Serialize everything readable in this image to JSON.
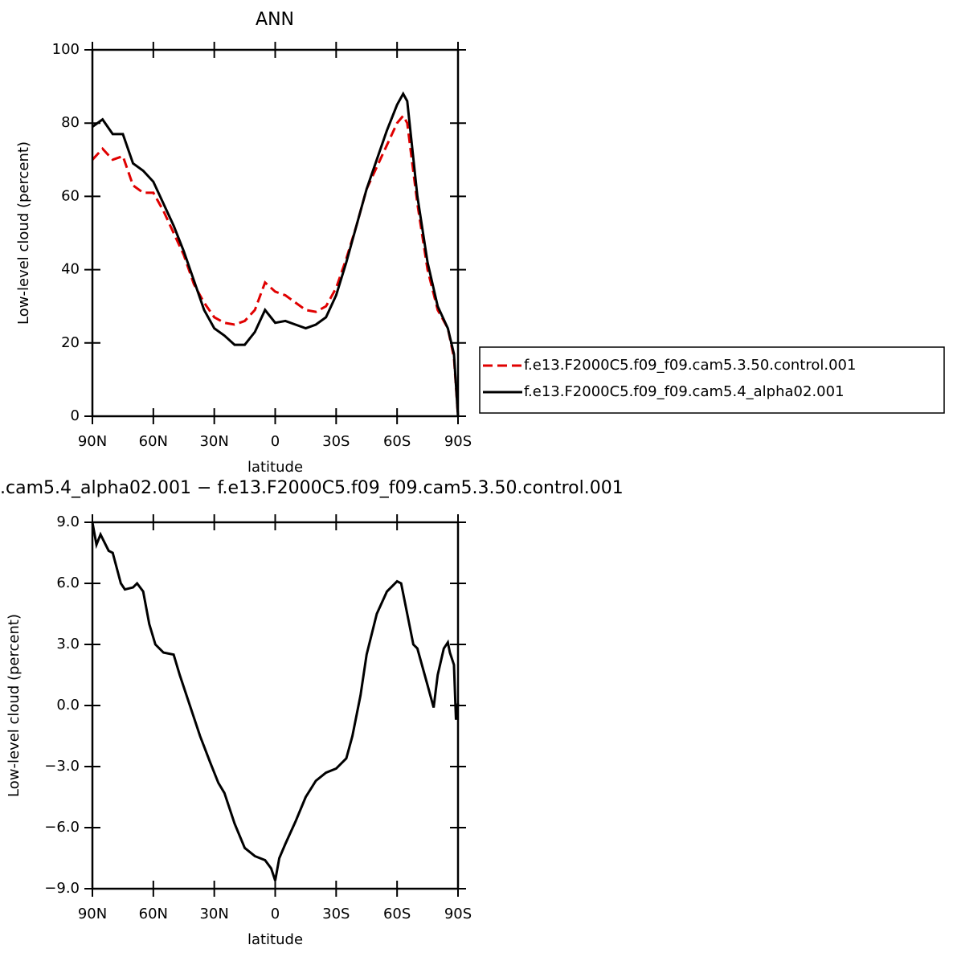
{
  "chart_data": [
    {
      "type": "line",
      "title": "ANN",
      "xlabel": "latitude",
      "ylabel": "Low-level cloud (percent)",
      "x": [
        90,
        85,
        80,
        75,
        70,
        65,
        60,
        55,
        50,
        45,
        40,
        35,
        30,
        25,
        20,
        15,
        10,
        5,
        0,
        -5,
        -10,
        -15,
        -20,
        -25,
        -30,
        -35,
        -40,
        -45,
        -50,
        -55,
        -60,
        -63,
        -65,
        -70,
        -75,
        -80,
        -85,
        -88,
        -90
      ],
      "series": [
        {
          "name": "f.e13.F2000C5.f09_f09.cam5.3.50.control.001",
          "color": "#e00000",
          "linestyle": "dashed",
          "values": [
            70,
            73,
            70,
            71,
            63,
            61,
            61,
            56,
            50,
            44,
            36,
            31,
            27,
            25.5,
            25,
            26,
            29,
            36.5,
            34,
            33,
            31,
            29,
            28.5,
            30,
            35,
            43,
            52,
            62,
            68,
            74,
            80,
            82,
            80,
            58,
            40,
            29,
            24,
            16,
            0
          ]
        },
        {
          "name": "f.e13.F2000C5.f09_f09.cam5.4_alpha02.001",
          "color": "#000000",
          "linestyle": "solid",
          "values": [
            79,
            81,
            77,
            77,
            69,
            67,
            64,
            58,
            52,
            45,
            37,
            29,
            24,
            22,
            19.5,
            19.5,
            23,
            29,
            25.5,
            26,
            25,
            24,
            25,
            27,
            33,
            42,
            52,
            62,
            70,
            78,
            85,
            88,
            86,
            60,
            42,
            30,
            24,
            17,
            0
          ]
        }
      ],
      "xlim": [
        90,
        -90
      ],
      "xticks": [
        {
          "value": 90,
          "label": "90N"
        },
        {
          "value": 60,
          "label": "60N"
        },
        {
          "value": 30,
          "label": "30N"
        },
        0,
        {
          "value": -30,
          "label": "30S"
        },
        {
          "value": -60,
          "label": "60S"
        },
        {
          "value": -90,
          "label": "90S"
        }
      ],
      "ylim": [
        0,
        100
      ],
      "yticks": [
        0,
        20,
        40,
        60,
        80,
        100
      ]
    },
    {
      "type": "line",
      "title": ".cam5.4_alpha02.001  −  f.e13.F2000C5.f09_f09.cam5.3.50.control.001",
      "xlabel": "latitude",
      "ylabel": "Low-level cloud (percent)",
      "x": [
        90,
        88,
        86,
        82,
        80,
        76,
        74,
        70,
        68,
        65,
        62,
        59,
        55,
        50,
        47,
        42,
        37,
        32,
        28,
        25,
        20,
        15,
        10,
        5,
        2,
        0,
        -2,
        -5,
        -10,
        -15,
        -20,
        -25,
        -30,
        -35,
        -38,
        -42,
        -45,
        -50,
        -55,
        -60,
        -62,
        -65,
        -68,
        -70,
        -75,
        -78,
        -80,
        -83,
        -85,
        -86,
        -88,
        -89,
        -90
      ],
      "values": [
        9.0,
        7.9,
        8.4,
        7.6,
        7.5,
        6.0,
        5.7,
        5.8,
        6.0,
        5.6,
        4.0,
        3.0,
        2.6,
        2.5,
        1.5,
        0,
        -1.5,
        -2.8,
        -3.8,
        -4.3,
        -5.8,
        -7.0,
        -7.4,
        -7.6,
        -8.0,
        -8.6,
        -7.5,
        -6.8,
        -5.7,
        -4.5,
        -3.7,
        -3.3,
        -3.1,
        -2.6,
        -1.5,
        0.5,
        2.5,
        4.5,
        5.6,
        6.1,
        6.0,
        4.5,
        3.0,
        2.8,
        1.0,
        -0.1,
        1.5,
        2.8,
        3.1,
        2.6,
        2.0,
        -0.7,
        0.1
      ],
      "color": "#000000",
      "xlim": [
        90,
        -90
      ],
      "xticks": [
        {
          "value": 90,
          "label": "90N"
        },
        {
          "value": 60,
          "label": "60N"
        },
        {
          "value": 30,
          "label": "30N"
        },
        0,
        {
          "value": -30,
          "label": "30S"
        },
        {
          "value": -60,
          "label": "60S"
        },
        {
          "value": -90,
          "label": "90S"
        }
      ],
      "ylim": [
        -9,
        9
      ],
      "yticks": [
        {
          "value": -9,
          "label": "−9.0"
        },
        {
          "value": -6,
          "label": "−6.0"
        },
        {
          "value": -3,
          "label": "−3.0"
        },
        {
          "value": 0,
          "label": "0.0"
        },
        {
          "value": 3,
          "label": "3.0"
        },
        {
          "value": 6,
          "label": "6.0"
        },
        {
          "value": 9,
          "label": "9.0"
        }
      ]
    }
  ]
}
